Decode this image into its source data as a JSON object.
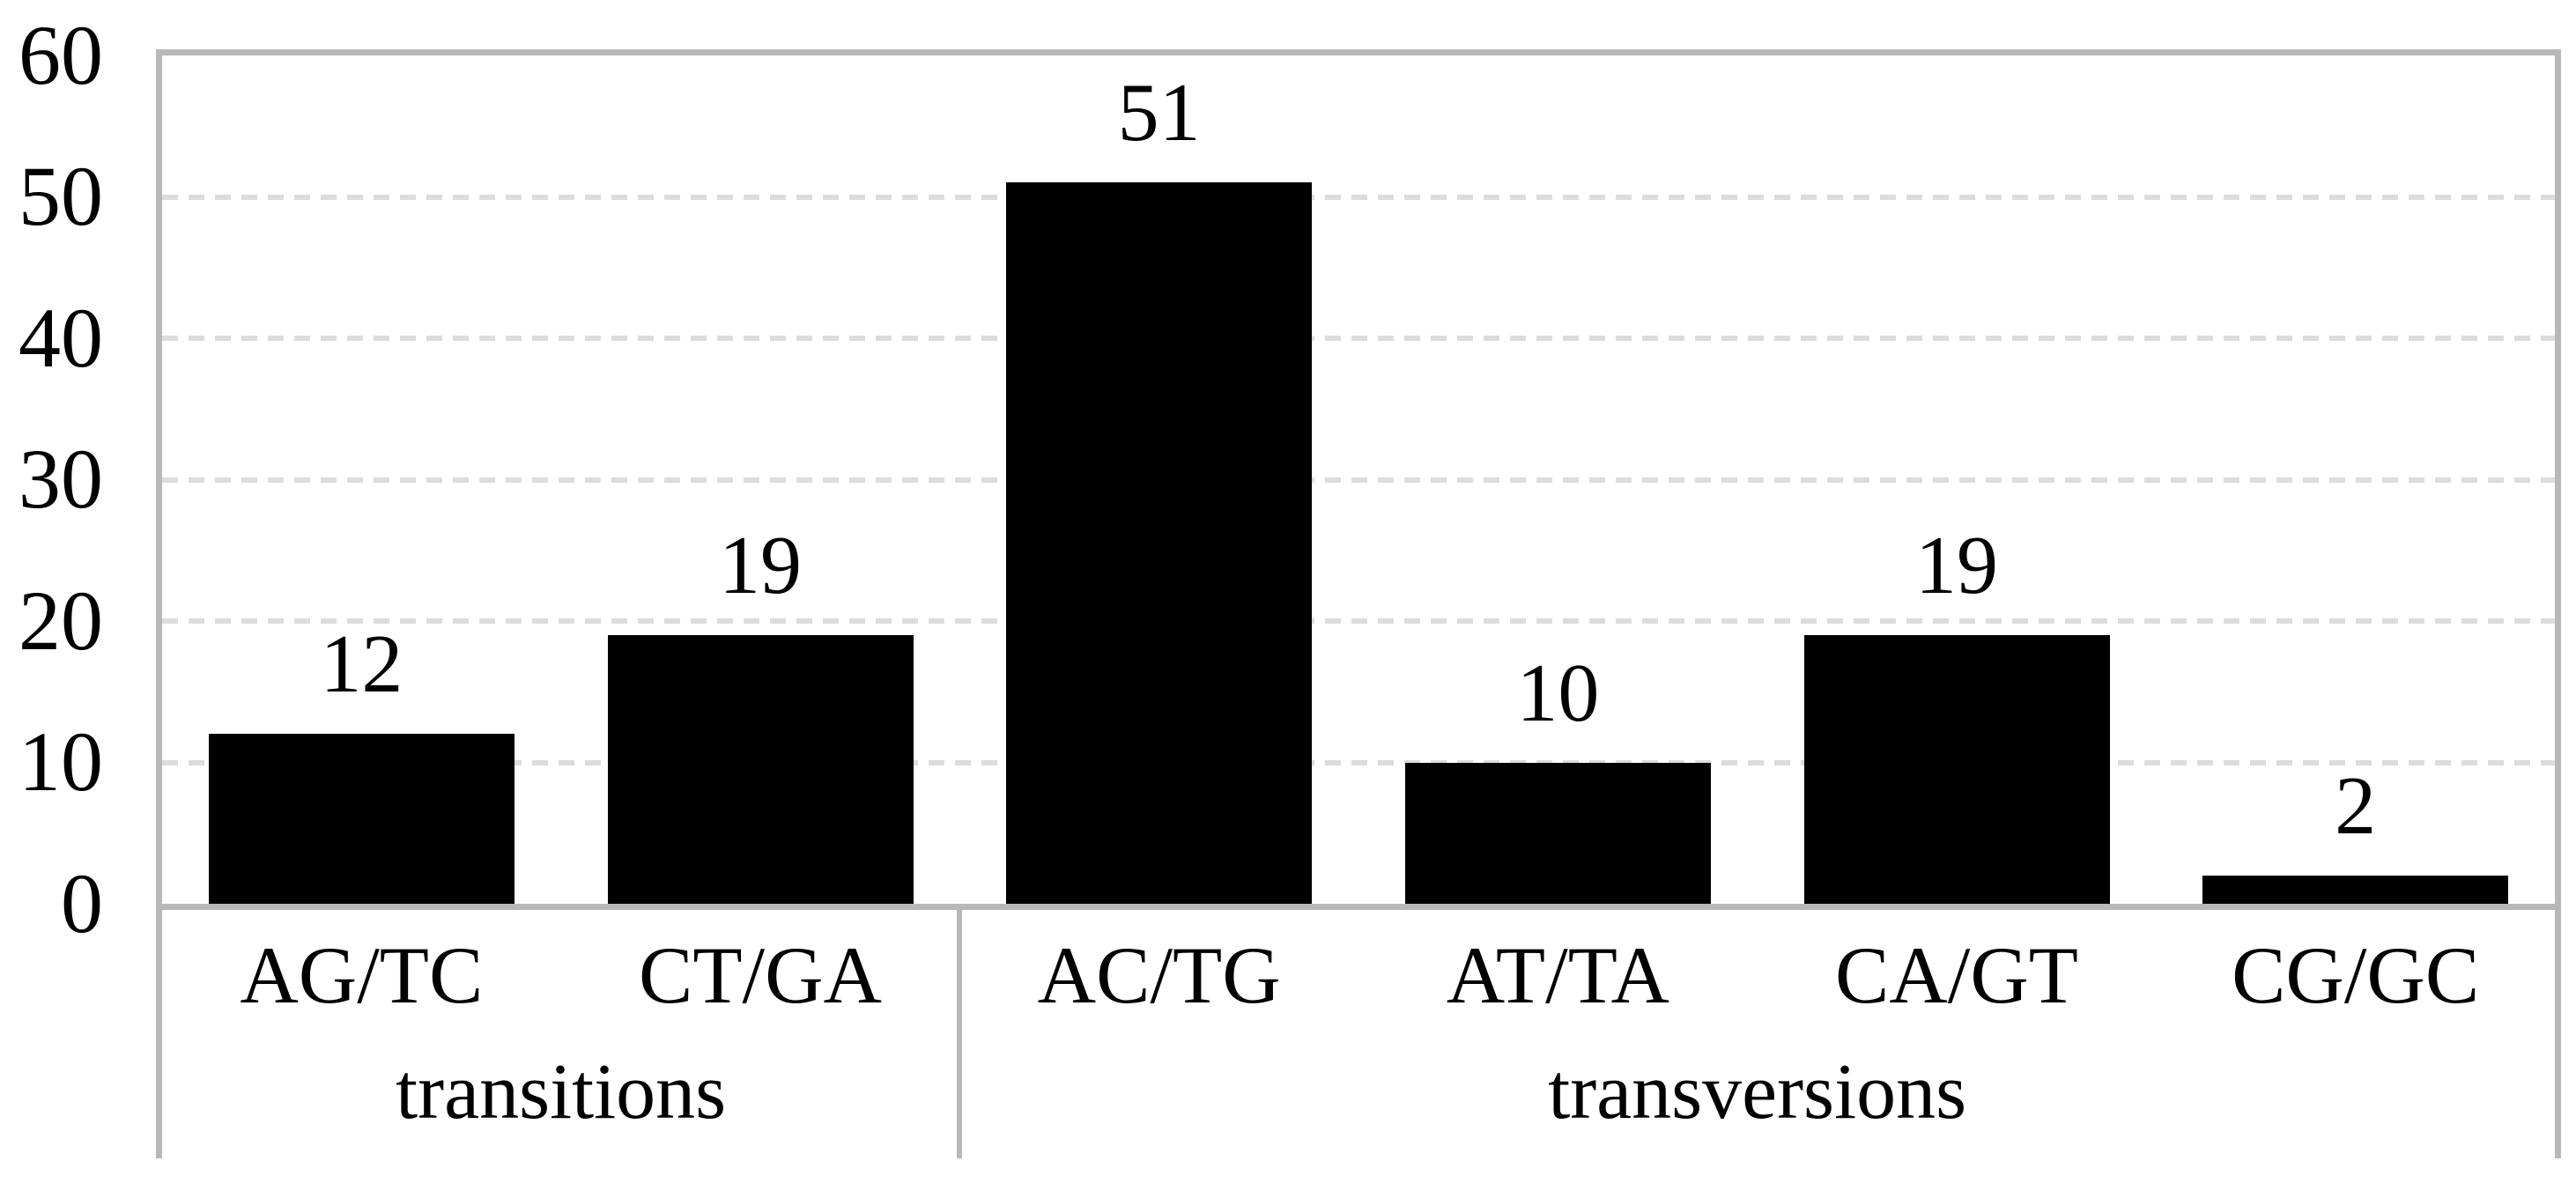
{
  "figure": {
    "description": "Black-and-white column chart of nucleotide substitution counts grouped into transitions and transversions"
  },
  "chart_data": {
    "type": "bar",
    "categories": [
      "AG/TC",
      "CT/GA",
      "AC/TG",
      "AT/TA",
      "CA/GT",
      "CG/GC"
    ],
    "values": [
      12,
      19,
      51,
      10,
      19,
      2
    ],
    "value_labels": [
      "12",
      "19",
      "51",
      "10",
      "19",
      "2"
    ],
    "groups": [
      {
        "label": "transitions",
        "start": 0,
        "end": 1
      },
      {
        "label": "transversions",
        "start": 2,
        "end": 5
      }
    ],
    "title": "",
    "xlabel": "",
    "ylabel": "",
    "ylim": [
      0,
      60
    ],
    "yticks": [
      0,
      10,
      20,
      30,
      40,
      50,
      60
    ],
    "grid": "horizontal-dashed",
    "legend_position": "none",
    "colors": {
      "bar": "#000000",
      "axis_line": "#b8b8b8",
      "gridline": "#dcdcdc",
      "text": "#000000",
      "background": "#ffffff"
    }
  }
}
